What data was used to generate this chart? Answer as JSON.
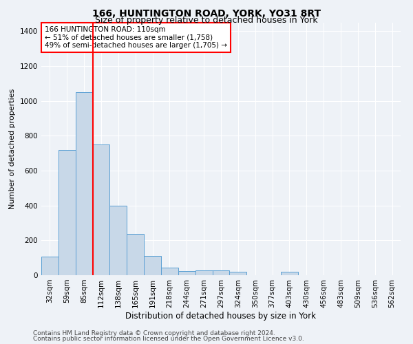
{
  "title1": "166, HUNTINGTON ROAD, YORK, YO31 8RT",
  "title2": "Size of property relative to detached houses in York",
  "xlabel": "Distribution of detached houses by size in York",
  "ylabel": "Number of detached properties",
  "categories": [
    "32sqm",
    "59sqm",
    "85sqm",
    "112sqm",
    "138sqm",
    "165sqm",
    "191sqm",
    "218sqm",
    "244sqm",
    "271sqm",
    "297sqm",
    "324sqm",
    "350sqm",
    "377sqm",
    "403sqm",
    "430sqm",
    "456sqm",
    "483sqm",
    "509sqm",
    "536sqm",
    "562sqm"
  ],
  "values": [
    105,
    720,
    1050,
    750,
    400,
    235,
    110,
    45,
    25,
    28,
    28,
    20,
    0,
    0,
    18,
    0,
    0,
    0,
    0,
    0,
    0
  ],
  "bar_color": "#c8d8e8",
  "bar_edge_color": "#5a9fd4",
  "vline_x": 2.5,
  "annotation_text": "166 HUNTINGTON ROAD: 110sqm\n← 51% of detached houses are smaller (1,758)\n49% of semi-detached houses are larger (1,705) →",
  "annotation_box_color": "white",
  "annotation_box_edge": "red",
  "vline_color": "red",
  "ylim": [
    0,
    1450
  ],
  "yticks": [
    0,
    200,
    400,
    600,
    800,
    1000,
    1200,
    1400
  ],
  "footer1": "Contains HM Land Registry data © Crown copyright and database right 2024.",
  "footer2": "Contains public sector information licensed under the Open Government Licence v3.0.",
  "background_color": "#eef2f7",
  "plot_bg_color": "#eef2f7",
  "grid_color": "#ffffff",
  "title1_fontsize": 10,
  "title2_fontsize": 9,
  "xlabel_fontsize": 8.5,
  "ylabel_fontsize": 8,
  "tick_fontsize": 7.5,
  "footer_fontsize": 6.5,
  "annot_fontsize": 7.5
}
